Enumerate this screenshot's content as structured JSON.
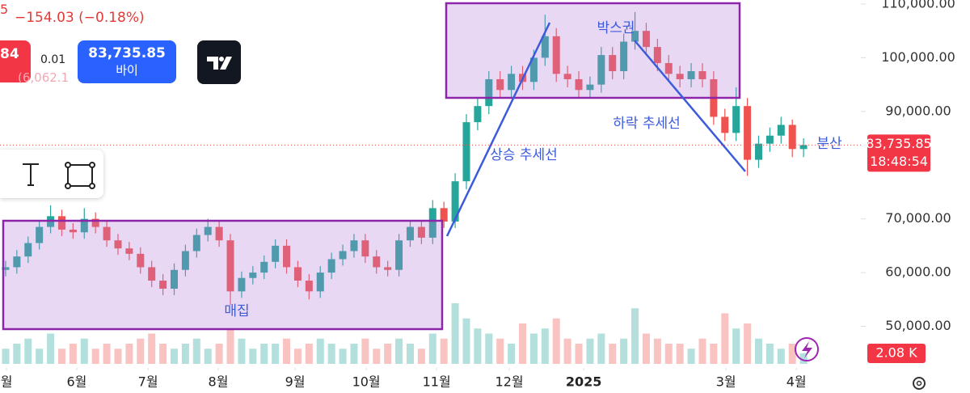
{
  "header": {
    "cut_digit": "5",
    "change": "−154.03 (−0.18%)",
    "sell_price": "84",
    "spread": "0.01",
    "buy_price": "83,735.85",
    "buy_label": "바이",
    "faded": "(6,062.1"
  },
  "chart_data": {
    "type": "candlestick",
    "open": [
      60500,
      61000,
      63000,
      65500,
      68500,
      70500,
      68000,
      67500,
      70000,
      68500,
      66000,
      64500,
      63500,
      61000,
      58500,
      57000,
      60500,
      64000,
      67000,
      68500,
      66000,
      56500,
      59000,
      60000,
      62000,
      65000,
      61000,
      58500,
      56500,
      60000,
      62500,
      64000,
      66000,
      63000,
      61000,
      60500,
      66000,
      68500,
      66500,
      72000,
      69500,
      77000,
      88000,
      91000,
      96000,
      94000,
      97000,
      95500,
      100000,
      104000,
      97000,
      96000,
      94000,
      95000,
      100500,
      97500,
      103000,
      105000,
      102000,
      99000,
      97000,
      96000,
      97500,
      96000,
      89000,
      86000,
      91000,
      81000,
      84000,
      85500,
      87500,
      83000
    ],
    "high": [
      62200,
      64200,
      66700,
      69700,
      72500,
      71700,
      69200,
      72000,
      71200,
      69700,
      67200,
      65700,
      64700,
      62200,
      59700,
      61700,
      65200,
      68200,
      70000,
      69700,
      67200,
      60200,
      61200,
      63200,
      66200,
      66200,
      62200,
      59700,
      61200,
      63700,
      65200,
      67200,
      67200,
      64200,
      62200,
      67200,
      69700,
      69700,
      73500,
      73200,
      78500,
      89500,
      92500,
      97500,
      97500,
      98500,
      98500,
      101500,
      108000,
      105500,
      98500,
      97500,
      96500,
      102000,
      102000,
      104500,
      108500,
      106500,
      103500,
      100500,
      98500,
      99000,
      99000,
      97500,
      90500,
      94500,
      92500,
      85500,
      87000,
      89000,
      88500,
      85000
    ],
    "low": [
      59300,
      59800,
      61800,
      64300,
      67300,
      66800,
      66300,
      66300,
      67300,
      64800,
      63300,
      62300,
      59800,
      57300,
      55800,
      55800,
      59300,
      62800,
      65800,
      64800,
      54000,
      55300,
      57800,
      58800,
      60800,
      59800,
      57300,
      55000,
      55300,
      58800,
      61300,
      62800,
      61800,
      59800,
      59300,
      59300,
      64800,
      65300,
      65300,
      68300,
      68300,
      75500,
      86500,
      89500,
      92500,
      92500,
      94000,
      94000,
      98500,
      95500,
      94500,
      92500,
      92500,
      93500,
      96000,
      96000,
      101500,
      100500,
      97500,
      95500,
      94500,
      94500,
      94500,
      87500,
      84500,
      84500,
      78000,
      79500,
      82500,
      84000,
      81500,
      81500
    ],
    "close": [
      61000,
      63000,
      65500,
      68500,
      70500,
      68000,
      67500,
      70000,
      68500,
      66000,
      64500,
      63500,
      61000,
      58500,
      57000,
      60500,
      64000,
      67000,
      68500,
      66000,
      56500,
      59000,
      60000,
      62000,
      65000,
      61000,
      58500,
      56500,
      60000,
      62500,
      64000,
      66000,
      63000,
      61000,
      60500,
      66000,
      68500,
      66500,
      72000,
      69500,
      77000,
      88000,
      91000,
      96000,
      94000,
      97000,
      95500,
      100000,
      104000,
      97000,
      96000,
      94000,
      95000,
      100500,
      97500,
      103000,
      105000,
      102000,
      99000,
      97000,
      96000,
      97500,
      96000,
      89000,
      86000,
      91000,
      81000,
      84000,
      85500,
      87500,
      83000,
      83735.85
    ],
    "volume": [
      3,
      4,
      5,
      3,
      6,
      3,
      4,
      5,
      3,
      4,
      3,
      4,
      5,
      6,
      4,
      3,
      4,
      5,
      3,
      4,
      7,
      5,
      3,
      4,
      4,
      5,
      3,
      4,
      5,
      4,
      3,
      4,
      5,
      3,
      4,
      5,
      4,
      3,
      6,
      5,
      12,
      9,
      7,
      6,
      5,
      4,
      8,
      6,
      7,
      9,
      5,
      4,
      5,
      6,
      4,
      5,
      11,
      6,
      5,
      4,
      4,
      3,
      5,
      4,
      10,
      7,
      8,
      5,
      4,
      3,
      4,
      2.08
    ],
    "volume_label": {
      "value": 2.08,
      "label": "2.08 K"
    },
    "colors": {
      "up": "#26a69a",
      "down": "#ef5350"
    },
    "xlim": [
      -0.5,
      76.1
    ],
    "xticks": [
      {
        "value": 0.08,
        "label": "월"
      },
      {
        "value": 6.33,
        "label": "6월"
      },
      {
        "value": 12.67,
        "label": "7월"
      },
      {
        "value": 18.92,
        "label": "8월"
      },
      {
        "value": 25.76,
        "label": "9월"
      },
      {
        "value": 32.09,
        "label": "10월"
      },
      {
        "value": 38.35,
        "label": "11월"
      },
      {
        "value": 44.82,
        "label": "12월"
      },
      {
        "value": 51.44,
        "label": "2025"
      },
      {
        "value": 64.1,
        "label": "3월"
      },
      {
        "value": 70.36,
        "label": "4월"
      }
    ],
    "ylim": [
      43000,
      110750
    ],
    "yticks": [
      {
        "value": 50000,
        "label": "50,000.00"
      },
      {
        "value": 60000,
        "label": "60,000.00"
      },
      {
        "value": 70000,
        "label": "70,000.00"
      },
      {
        "value": 90000,
        "label": "90,000.00"
      },
      {
        "value": 100000,
        "label": "100,000.00"
      },
      {
        "value": 110000,
        "label": "110,000.00"
      }
    ],
    "last_price": {
      "value": 83735.85,
      "label": "83,735.85"
    },
    "countdown": "18:48:54",
    "annotations": [
      "매집",
      "상승 추세선",
      "박스권",
      "하락 추세선",
      "분산"
    ]
  }
}
